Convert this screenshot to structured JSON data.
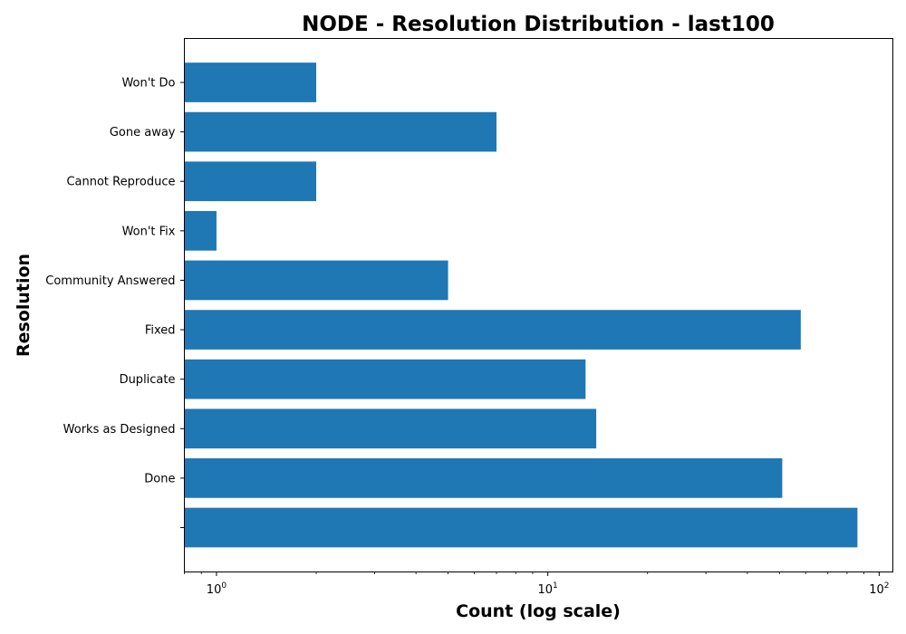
{
  "chart_data": {
    "type": "bar",
    "orientation": "horizontal",
    "title": "NODE - Resolution Distribution - last100",
    "xlabel": "Count (log scale)",
    "ylabel": "Resolution",
    "x_scale": "log",
    "xlim": [
      0.8,
      110
    ],
    "x_ticks": [
      {
        "value": 1,
        "base": "10",
        "exp": "0"
      },
      {
        "value": 10,
        "base": "10",
        "exp": "1"
      },
      {
        "value": 100,
        "base": "10",
        "exp": "2"
      }
    ],
    "categories": [
      "",
      "Done",
      "Works as Designed",
      "Duplicate",
      "Fixed",
      "Community Answered",
      "Won't Fix",
      "Cannot Reproduce",
      "Gone away",
      "Won't Do"
    ],
    "values": [
      86,
      51,
      14,
      13,
      58,
      5,
      1,
      2,
      7,
      2
    ],
    "bar_color": "#1f77b4",
    "grid": false,
    "legend": "none"
  }
}
